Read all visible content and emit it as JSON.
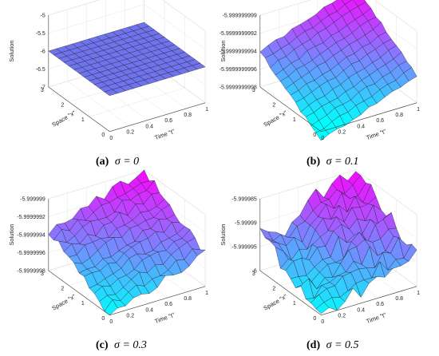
{
  "figure": {
    "panels": [
      {
        "caption_id": "(a)",
        "caption_eq": "σ = 0"
      },
      {
        "caption_id": "(b)",
        "caption_eq": "σ = 0.1"
      },
      {
        "caption_id": "(c)",
        "caption_eq": "σ = 0.3"
      },
      {
        "caption_id": "(d)",
        "caption_eq": "σ = 0.5"
      }
    ]
  },
  "chart_data": [
    {
      "type": "surface3d",
      "zlabel": "Solution",
      "xlabel": "Space \"x\"",
      "ylabel": "Time \"t\"",
      "x_ticks": [
        "0",
        "1",
        "2",
        "3"
      ],
      "t_ticks": [
        "0",
        "0.2",
        "0.4",
        "0.6",
        "0.8",
        "1"
      ],
      "z_ticks": [
        "-5",
        "-5.5",
        "-6",
        "-6.5",
        "-7"
      ],
      "zlim": [
        -7,
        -5
      ],
      "xlim": [
        0,
        3
      ],
      "tlim": [
        0,
        1
      ],
      "surface": {
        "constant_value": -6,
        "roughness": 0,
        "shape": "flat"
      },
      "colormap": "cool-flat"
    },
    {
      "type": "surface3d",
      "zlabel": "Solution",
      "xlabel": "Space \"x\"",
      "ylabel": "Time \"t\"",
      "x_ticks": [
        "0",
        "1",
        "2",
        "3"
      ],
      "t_ticks": [
        "0",
        "0.2",
        "0.4",
        "0.6",
        "0.8",
        "1"
      ],
      "z_ticks": [
        "-5.999999999",
        "-5.9999999992",
        "-5.9999999994",
        "-5.9999999996",
        "-5.9999999998"
      ],
      "zlim": [
        -5.9999999998,
        -5.999999999
      ],
      "xlim": [
        0,
        3
      ],
      "tlim": [
        0,
        1
      ],
      "surface": {
        "z_at_x0_t0": -5.9999999999,
        "z_at_x3_t1": -5.999999999,
        "roughness": 0.04,
        "shape": "tilted"
      },
      "colormap": "cool"
    },
    {
      "type": "surface3d",
      "zlabel": "Solution",
      "xlabel": "Space \"x\"",
      "ylabel": "Time \"t\"",
      "x_ticks": [
        "0",
        "1",
        "2",
        "3"
      ],
      "t_ticks": [
        "0",
        "0.2",
        "0.4",
        "0.6",
        "0.8",
        "1"
      ],
      "z_ticks": [
        "-5.999999",
        "-5.9999992",
        "-5.9999994",
        "-5.9999996",
        "-5.9999998"
      ],
      "zlim": [
        -5.9999998,
        -5.999999
      ],
      "xlim": [
        0,
        3
      ],
      "tlim": [
        0,
        1
      ],
      "surface": {
        "z_at_x0_t0": -5.9999998,
        "z_at_x3_t1": -5.999999,
        "roughness": 0.12,
        "shape": "tilted"
      },
      "colormap": "cool"
    },
    {
      "type": "surface3d",
      "zlabel": "Solution",
      "xlabel": "Space \"x\"",
      "ylabel": "Time \"t\"",
      "x_ticks": [
        "0",
        "1",
        "2",
        "3"
      ],
      "t_ticks": [
        "0",
        "0.2",
        "0.4",
        "0.6",
        "0.8",
        "1"
      ],
      "z_ticks": [
        "-5.999985",
        "-5.99999",
        "-5.999995",
        "-6"
      ],
      "zlim": [
        -6,
        -5.999985
      ],
      "xlim": [
        0,
        3
      ],
      "tlim": [
        0,
        1
      ],
      "surface": {
        "z_at_x0_t0": -6.0,
        "z_at_x3_t1": -5.999985,
        "roughness": 0.22,
        "shape": "tilted-valley"
      },
      "colormap": "cool"
    }
  ]
}
